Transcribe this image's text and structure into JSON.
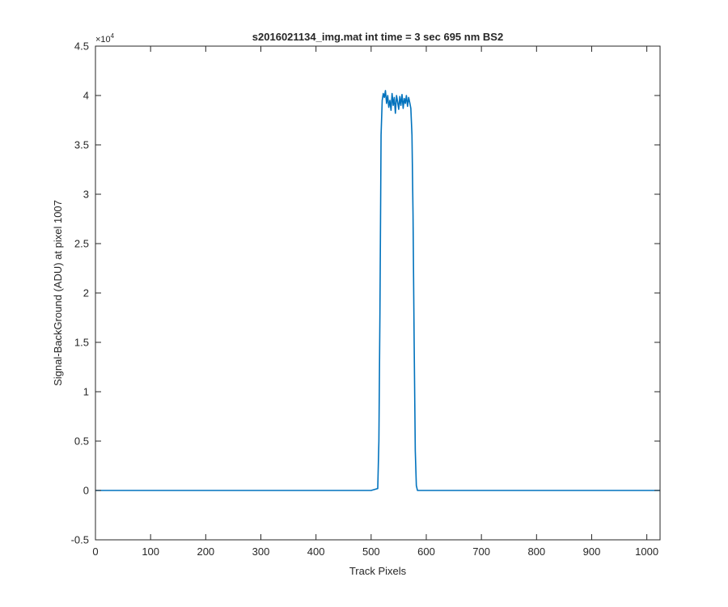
{
  "chart_data": {
    "type": "line",
    "title": "s2016021134_img.mat int time = 3 sec  695 nm BS2",
    "xlabel": "Track Pixels",
    "ylabel": "Signal-BackGround (ADU) at pixel 1007",
    "y_exponent_label": "×10",
    "y_exponent_power": "4",
    "y_multiplier": 10000,
    "xlim": [
      0,
      1024
    ],
    "ylim": [
      -0.5,
      4.5
    ],
    "x_ticks": [
      0,
      100,
      200,
      300,
      400,
      500,
      600,
      700,
      800,
      900,
      1000
    ],
    "x_tick_labels": [
      "0",
      "100",
      "200",
      "300",
      "400",
      "500",
      "600",
      "700",
      "800",
      "900",
      "1000"
    ],
    "y_ticks": [
      -0.5,
      0,
      0.5,
      1,
      1.5,
      2,
      2.5,
      3,
      3.5,
      4,
      4.5
    ],
    "y_tick_labels": [
      "-0.5",
      "0",
      "0.5",
      "1",
      "1.5",
      "2",
      "2.5",
      "3",
      "3.5",
      "4",
      "4.5"
    ],
    "grid": false,
    "series_color": "#0072BD",
    "series": [
      {
        "x": [
          0,
          100,
          200,
          300,
          400,
          500,
          512,
          514,
          516,
          518,
          520,
          522,
          524,
          526,
          528,
          530,
          532,
          534,
          536,
          538,
          540,
          542,
          544,
          546,
          548,
          550,
          552,
          554,
          556,
          558,
          560,
          562,
          564,
          566,
          568,
          570,
          572,
          574,
          576,
          578,
          580,
          582,
          584,
          586,
          600,
          700,
          800,
          900,
          1000,
          1024
        ],
        "y": [
          0.0,
          0.0,
          0.0,
          0.0,
          0.0,
          0.0,
          0.02,
          0.5,
          1.8,
          3.6,
          3.95,
          4.02,
          3.98,
          4.05,
          3.92,
          4.0,
          3.88,
          3.95,
          3.85,
          4.02,
          3.9,
          3.98,
          3.82,
          4.0,
          3.94,
          3.86,
          3.99,
          3.9,
          4.01,
          3.87,
          3.97,
          3.92,
          4.0,
          3.89,
          3.98,
          3.93,
          3.87,
          3.6,
          2.8,
          1.5,
          0.4,
          0.05,
          0.0,
          0.0,
          0.0,
          0.0,
          0.0,
          0.0,
          0.0,
          0.0
        ]
      }
    ]
  }
}
